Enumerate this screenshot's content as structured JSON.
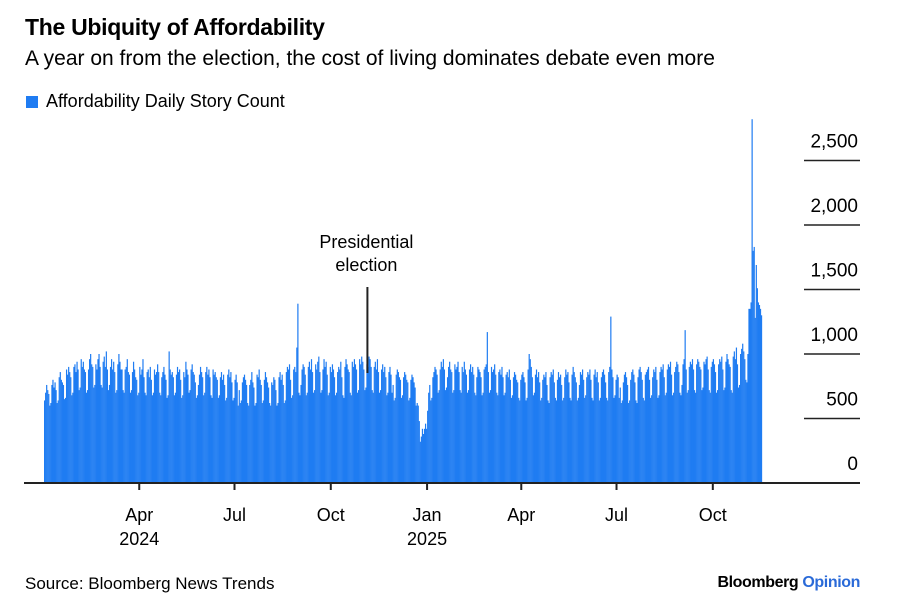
{
  "colors": {
    "bar": "#1f7cf2",
    "axis": "#222222",
    "opinion": "#2a6ad8"
  },
  "chart_data": {
    "type": "bar",
    "title": "The Ubiquity of Affordability",
    "subtitle": "A year on from the election, the cost of living dominates debate even more",
    "series": [
      {
        "name": "Affordability Daily Story Count"
      }
    ],
    "x_range": [
      "2024-01-01",
      "2025-11-16"
    ],
    "x_ticks": [
      {
        "date": "2024-04-01",
        "label": "Apr",
        "year": "2024"
      },
      {
        "date": "2024-07-01",
        "label": "Jul",
        "year": ""
      },
      {
        "date": "2024-10-01",
        "label": "Oct",
        "year": ""
      },
      {
        "date": "2025-01-01",
        "label": "Jan",
        "year": "2025"
      },
      {
        "date": "2025-04-01",
        "label": "Apr",
        "year": ""
      },
      {
        "date": "2025-07-01",
        "label": "Jul",
        "year": ""
      },
      {
        "date": "2025-10-01",
        "label": "Oct",
        "year": ""
      }
    ],
    "ylim": [
      0,
      2800
    ],
    "y_ticks": [
      {
        "value": 0,
        "label": "0"
      },
      {
        "value": 500,
        "label": "500"
      },
      {
        "value": 1000,
        "label": "1,000"
      },
      {
        "value": 1500,
        "label": "1,500"
      },
      {
        "value": 2000,
        "label": "2,000"
      },
      {
        "value": 2500,
        "label": "2,500"
      }
    ],
    "y_axis_side": "right",
    "grid": true,
    "legend_position": "top-left",
    "annotation": {
      "date": "2024-11-05",
      "text_line1": "Presidential",
      "text_line2": "election"
    },
    "values": [
      640,
      700,
      760,
      720,
      690,
      600,
      620,
      760,
      800,
      740,
      780,
      720,
      620,
      640,
      820,
      860,
      800,
      780,
      760,
      650,
      660,
      880,
      840,
      900,
      860,
      820,
      680,
      700,
      900,
      920,
      860,
      940,
      880,
      720,
      740,
      960,
      900,
      940,
      880,
      860,
      700,
      720,
      880,
      960,
      1000,
      920,
      900,
      740,
      760,
      920,
      880,
      960,
      1000,
      900,
      760,
      740,
      940,
      980,
      900,
      1020,
      880,
      720,
      760,
      900,
      960,
      880,
      940,
      860,
      700,
      720,
      920,
      1000,
      940,
      880,
      880,
      720,
      700,
      880,
      900,
      960,
      860,
      840,
      700,
      720,
      860,
      940,
      880,
      820,
      800,
      680,
      700,
      900,
      840,
      880,
      960,
      820,
      700,
      680,
      860,
      880,
      820,
      900,
      800,
      680,
      700,
      880,
      840,
      860,
      920,
      860,
      700,
      680,
      820,
      860,
      900,
      840,
      800,
      660,
      680,
      1020,
      880,
      840,
      860,
      820,
      680,
      700,
      840,
      900,
      860,
      880,
      800,
      660,
      680,
      860,
      820,
      940,
      880,
      840,
      700,
      720,
      880,
      920,
      860,
      840,
      780,
      660,
      680,
      760,
      840,
      900,
      860,
      820,
      680,
      700,
      860,
      900,
      840,
      880,
      820,
      680,
      660,
      880,
      840,
      860,
      820,
      800,
      660,
      680,
      820,
      860,
      800,
      840,
      760,
      640,
      660,
      840,
      880,
      820,
      860,
      780,
      640,
      660,
      800,
      840,
      780,
      600,
      720,
      620,
      640,
      780,
      820,
      840,
      800,
      760,
      620,
      600,
      760,
      800,
      860,
      780,
      740,
      600,
      620,
      840,
      820,
      880,
      800,
      760,
      620,
      640,
      800,
      860,
      820,
      780,
      740,
      620,
      600,
      780,
      760,
      820,
      800,
      720,
      600,
      620,
      820,
      860,
      800,
      840,
      760,
      620,
      640,
      860,
      900,
      880,
      920,
      800,
      660,
      680,
      880,
      900,
      860,
      1050,
      1390,
      700,
      680,
      760,
      880,
      920,
      900,
      840,
      680,
      700,
      900,
      940,
      880,
      960,
      860,
      700,
      720,
      920,
      880,
      940,
      980,
      860,
      700,
      720,
      880,
      960,
      900,
      940,
      840,
      680,
      700,
      900,
      860,
      920,
      880,
      820,
      680,
      700,
      860,
      900,
      880,
      940,
      820,
      680,
      660,
      900,
      960,
      920,
      880,
      860,
      700,
      680,
      940,
      900,
      960,
      920,
      880,
      700,
      720,
      960,
      920,
      980,
      940,
      880,
      720,
      740,
      920,
      900,
      980,
      960,
      900,
      720,
      700,
      900,
      940,
      880,
      960,
      860,
      700,
      720,
      880,
      920,
      860,
      900,
      820,
      680,
      700,
      860,
      900,
      840,
      700,
      760,
      640,
      660,
      840,
      880,
      860,
      820,
      800,
      660,
      680,
      820,
      860,
      840,
      800,
      780,
      640,
      660,
      800,
      840,
      820,
      780,
      740,
      600,
      620,
      600,
      480,
      320,
      360,
      420,
      380,
      420,
      460,
      420,
      560,
      700,
      760,
      640,
      660,
      820,
      860,
      900,
      880,
      840,
      700,
      720,
      880,
      940,
      900,
      960,
      880,
      720,
      740,
      820,
      900,
      940,
      880,
      860,
      700,
      720,
      920,
      880,
      900,
      940,
      860,
      720,
      700,
      900,
      860,
      940,
      880,
      840,
      700,
      720,
      880,
      920,
      860,
      900,
      840,
      700,
      680,
      820,
      900,
      880,
      860,
      820,
      680,
      700,
      880,
      900,
      920,
      1170,
      860,
      700,
      720,
      900,
      860,
      880,
      920,
      840,
      700,
      680,
      860,
      880,
      840,
      900,
      820,
      680,
      700,
      840,
      860,
      820,
      880,
      800,
      660,
      680,
      820,
      860,
      840,
      800,
      780,
      660,
      640,
      800,
      840,
      860,
      820,
      780,
      640,
      660,
      880,
      1000,
      960,
      900,
      820,
      680,
      700,
      840,
      880,
      820,
      860,
      780,
      640,
      660,
      800,
      840,
      820,
      860,
      760,
      640,
      620,
      820,
      860,
      840,
      880,
      780,
      660,
      640,
      800,
      860,
      820,
      840,
      760,
      640,
      660,
      820,
      880,
      840,
      860,
      780,
      660,
      640,
      840,
      900,
      860,
      820,
      780,
      640,
      660,
      760,
      860,
      840,
      880,
      800,
      660,
      680,
      820,
      860,
      840,
      880,
      800,
      660,
      640,
      840,
      880,
      820,
      860,
      780,
      640,
      660,
      820,
      860,
      880,
      840,
      780,
      660,
      640,
      860,
      900,
      1290,
      880,
      820,
      660,
      680,
      800,
      840,
      820,
      660,
      740,
      620,
      640,
      780,
      840,
      860,
      820,
      760,
      620,
      640,
      800,
      860,
      880,
      840,
      780,
      640,
      620,
      820,
      880,
      900,
      860,
      800,
      660,
      640,
      840,
      860,
      880,
      900,
      800,
      660,
      680,
      820,
      880,
      860,
      900,
      800,
      660,
      680,
      860,
      900,
      880,
      920,
      820,
      680,
      700,
      880,
      920,
      900,
      940,
      840,
      680,
      700,
      860,
      900,
      940,
      920,
      860,
      700,
      680,
      760,
      920,
      960,
      1185,
      880,
      700,
      720,
      900,
      940,
      920,
      960,
      880,
      720,
      700,
      920,
      960,
      940,
      900,
      880,
      720,
      740,
      940,
      920,
      960,
      980,
      880,
      720,
      700,
      900,
      940,
      960,
      920,
      860,
      700,
      720,
      920,
      960,
      940,
      980,
      880,
      720,
      740,
      940,
      1000,
      960,
      920,
      900,
      720,
      700,
      980,
      1020,
      960,
      1050,
      920,
      740,
      760,
      1000,
      1040,
      1080,
      1020,
      960,
      800,
      780,
      1000,
      1350,
      1350,
      1400,
      2820,
      1800,
      1830,
      1280,
      1690,
      1510,
      1400,
      1380,
      1350,
      1300
    ]
  },
  "footer": {
    "source": "Source: Bloomberg News Trends",
    "brand_main": "Bloomberg",
    "brand_accent": "Opinion"
  }
}
